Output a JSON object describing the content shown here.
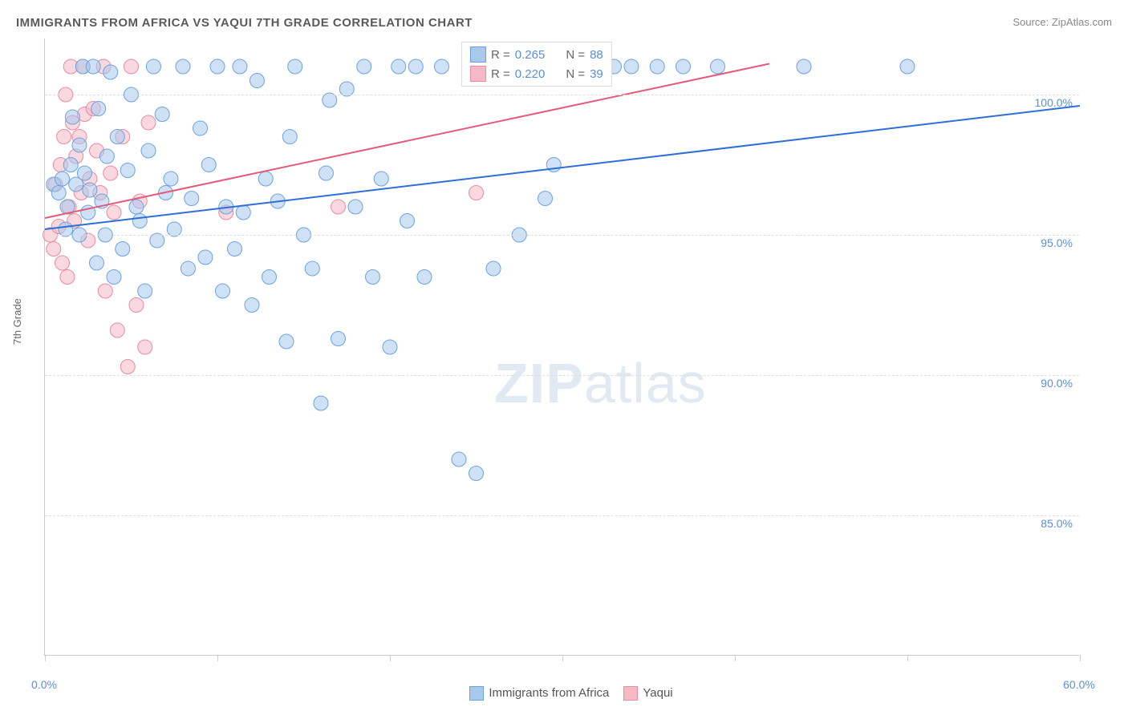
{
  "title": "IMMIGRANTS FROM AFRICA VS YAQUI 7TH GRADE CORRELATION CHART",
  "source": "Source: ZipAtlas.com",
  "ylabel": "7th Grade",
  "watermark_a": "ZIP",
  "watermark_b": "atlas",
  "chart": {
    "type": "scatter",
    "xlim": [
      0,
      60
    ],
    "ylim": [
      80,
      102
    ],
    "x_ticks": [
      0,
      10,
      20,
      30,
      40,
      50,
      60
    ],
    "x_tick_labels": [
      "0.0%",
      "",
      "",
      "",
      "",
      "",
      "60.0%"
    ],
    "y_ticks": [
      85,
      90,
      95,
      100
    ],
    "y_tick_labels": [
      "85.0%",
      "90.0%",
      "95.0%",
      "100.0%"
    ],
    "background_color": "#ffffff",
    "grid_color": "#dddddd",
    "series": [
      {
        "name": "Immigrants from Africa",
        "color_fill": "#a8c8ec",
        "color_stroke": "#6ba3e0",
        "fill_opacity": 0.55,
        "marker_radius": 9,
        "trend_color": "#2e6fd6",
        "trend_width": 2,
        "trend": {
          "x1": 0,
          "y1": 95.2,
          "x2": 60,
          "y2": 99.6
        },
        "R": "0.265",
        "N": "88",
        "points": [
          [
            0.5,
            96.8
          ],
          [
            0.8,
            96.5
          ],
          [
            1.0,
            97.0
          ],
          [
            1.2,
            95.2
          ],
          [
            1.3,
            96.0
          ],
          [
            1.5,
            97.5
          ],
          [
            1.6,
            99.2
          ],
          [
            1.8,
            96.8
          ],
          [
            2.0,
            95.0
          ],
          [
            2.0,
            98.2
          ],
          [
            2.2,
            101.0
          ],
          [
            2.3,
            97.2
          ],
          [
            2.5,
            95.8
          ],
          [
            2.6,
            96.6
          ],
          [
            2.8,
            101.0
          ],
          [
            3.0,
            94.0
          ],
          [
            3.1,
            99.5
          ],
          [
            3.3,
            96.2
          ],
          [
            3.5,
            95.0
          ],
          [
            3.6,
            97.8
          ],
          [
            3.8,
            100.8
          ],
          [
            4.0,
            93.5
          ],
          [
            4.2,
            98.5
          ],
          [
            4.5,
            94.5
          ],
          [
            4.8,
            97.3
          ],
          [
            5.0,
            100.0
          ],
          [
            5.3,
            96.0
          ],
          [
            5.5,
            95.5
          ],
          [
            5.8,
            93.0
          ],
          [
            6.0,
            98.0
          ],
          [
            6.3,
            101.0
          ],
          [
            6.5,
            94.8
          ],
          [
            6.8,
            99.3
          ],
          [
            7.0,
            96.5
          ],
          [
            7.3,
            97.0
          ],
          [
            7.5,
            95.2
          ],
          [
            8.0,
            101.0
          ],
          [
            8.3,
            93.8
          ],
          [
            8.5,
            96.3
          ],
          [
            9.0,
            98.8
          ],
          [
            9.3,
            94.2
          ],
          [
            9.5,
            97.5
          ],
          [
            10.0,
            101.0
          ],
          [
            10.3,
            93.0
          ],
          [
            10.5,
            96.0
          ],
          [
            11.0,
            94.5
          ],
          [
            11.3,
            101.0
          ],
          [
            11.5,
            95.8
          ],
          [
            12.0,
            92.5
          ],
          [
            12.3,
            100.5
          ],
          [
            12.8,
            97.0
          ],
          [
            13.0,
            93.5
          ],
          [
            13.5,
            96.2
          ],
          [
            14.0,
            91.2
          ],
          [
            14.2,
            98.5
          ],
          [
            14.5,
            101.0
          ],
          [
            15.0,
            95.0
          ],
          [
            15.5,
            93.8
          ],
          [
            16.0,
            89.0
          ],
          [
            16.3,
            97.2
          ],
          [
            16.5,
            99.8
          ],
          [
            17.0,
            91.3
          ],
          [
            17.5,
            100.2
          ],
          [
            18.0,
            96.0
          ],
          [
            18.5,
            101.0
          ],
          [
            19.0,
            93.5
          ],
          [
            19.5,
            97.0
          ],
          [
            20.0,
            91.0
          ],
          [
            20.5,
            101.0
          ],
          [
            21.0,
            95.5
          ],
          [
            21.5,
            101.0
          ],
          [
            22.0,
            93.5
          ],
          [
            23.0,
            101.0
          ],
          [
            24.0,
            87.0
          ],
          [
            25.0,
            86.5
          ],
          [
            26.0,
            93.8
          ],
          [
            27.5,
            95.0
          ],
          [
            28.0,
            101.0
          ],
          [
            29.0,
            96.3
          ],
          [
            29.5,
            97.5
          ],
          [
            32.0,
            101.0
          ],
          [
            33.0,
            101.0
          ],
          [
            34.0,
            101.0
          ],
          [
            35.5,
            101.0
          ],
          [
            37.0,
            101.0
          ],
          [
            39.0,
            101.0
          ],
          [
            44.0,
            101.0
          ],
          [
            50.0,
            101.0
          ]
        ]
      },
      {
        "name": "Yaqui",
        "color_fill": "#f5b8c5",
        "color_stroke": "#e98ba0",
        "fill_opacity": 0.55,
        "marker_radius": 9,
        "trend_color": "#e35b7a",
        "trend_width": 2,
        "trend": {
          "x1": 0,
          "y1": 95.6,
          "x2": 42,
          "y2": 101.1
        },
        "R": "0.220",
        "N": "39",
        "points": [
          [
            0.3,
            95.0
          ],
          [
            0.5,
            94.5
          ],
          [
            0.6,
            96.8
          ],
          [
            0.8,
            95.3
          ],
          [
            0.9,
            97.5
          ],
          [
            1.0,
            94.0
          ],
          [
            1.1,
            98.5
          ],
          [
            1.2,
            100.0
          ],
          [
            1.3,
            93.5
          ],
          [
            1.4,
            96.0
          ],
          [
            1.5,
            101.0
          ],
          [
            1.6,
            99.0
          ],
          [
            1.7,
            95.5
          ],
          [
            1.8,
            97.8
          ],
          [
            2.0,
            98.5
          ],
          [
            2.1,
            96.5
          ],
          [
            2.2,
            101.0
          ],
          [
            2.3,
            99.3
          ],
          [
            2.5,
            94.8
          ],
          [
            2.6,
            97.0
          ],
          [
            2.8,
            99.5
          ],
          [
            3.0,
            98.0
          ],
          [
            3.2,
            96.5
          ],
          [
            3.4,
            101.0
          ],
          [
            3.5,
            93.0
          ],
          [
            3.8,
            97.2
          ],
          [
            4.0,
            95.8
          ],
          [
            4.2,
            91.6
          ],
          [
            4.5,
            98.5
          ],
          [
            4.8,
            90.3
          ],
          [
            5.0,
            101.0
          ],
          [
            5.3,
            92.5
          ],
          [
            5.5,
            96.2
          ],
          [
            5.8,
            91.0
          ],
          [
            6.0,
            99.0
          ],
          [
            10.5,
            95.8
          ],
          [
            17.0,
            96.0
          ],
          [
            25.0,
            96.5
          ],
          [
            27.5,
            101.0
          ]
        ]
      }
    ]
  },
  "legend_box": {
    "rows": [
      {
        "fill": "#a8c8ec",
        "stroke": "#6ba3e0",
        "r_label": "R =",
        "r_val": "0.265",
        "n_label": "N =",
        "n_val": "88"
      },
      {
        "fill": "#f5b8c5",
        "stroke": "#e98ba0",
        "r_label": "R =",
        "r_val": "0.220",
        "n_label": "N =",
        "n_val": "39"
      }
    ]
  },
  "bottom_legend": {
    "items": [
      {
        "fill": "#a8c8ec",
        "stroke": "#6ba3e0",
        "label": "Immigrants from Africa"
      },
      {
        "fill": "#f5b8c5",
        "stroke": "#e98ba0",
        "label": "Yaqui"
      }
    ]
  }
}
